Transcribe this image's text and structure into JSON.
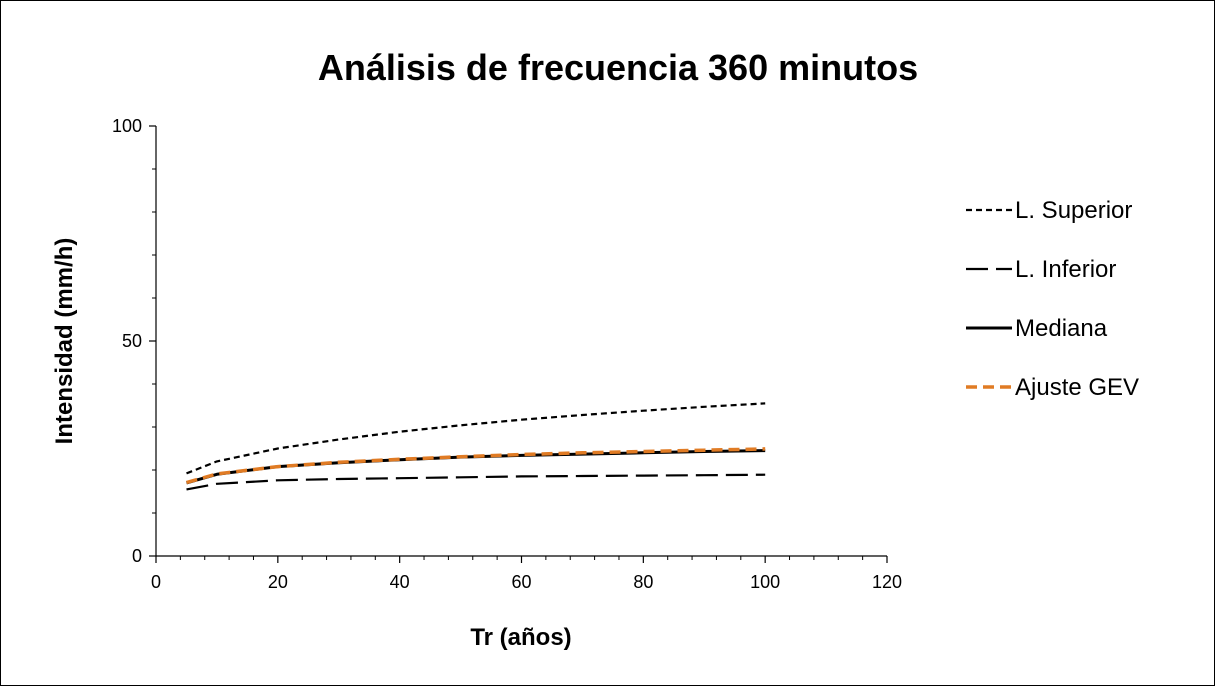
{
  "chart_data": {
    "type": "line",
    "title": "Análisis de frecuencia 360 minutos",
    "xlabel": "Tr (años)",
    "ylabel": "Intensidad (mm/h)",
    "xlim": [
      0,
      120
    ],
    "ylim": [
      0,
      100
    ],
    "x_ticks": [
      "0",
      "20",
      "40",
      "60",
      "80",
      "100",
      "120"
    ],
    "y_ticks": [
      "0",
      "50",
      "100"
    ],
    "grid": false,
    "legend_position": "right",
    "x": [
      5,
      10,
      20,
      30,
      40,
      50,
      60,
      70,
      80,
      90,
      100
    ],
    "series": [
      {
        "name": "L. Superior",
        "style": "short-dash",
        "color": "#000000",
        "values": [
          19.2,
          22.0,
          25.0,
          27.1,
          28.9,
          30.4,
          31.7,
          32.8,
          33.8,
          34.7,
          35.5
        ]
      },
      {
        "name": "L. Inferior",
        "style": "long-dash",
        "color": "#000000",
        "values": [
          15.5,
          16.8,
          17.6,
          17.9,
          18.1,
          18.3,
          18.5,
          18.6,
          18.7,
          18.8,
          18.9
        ]
      },
      {
        "name": "Mediana",
        "style": "solid",
        "color": "#000000",
        "values": [
          17.0,
          19.0,
          20.8,
          21.7,
          22.4,
          23.0,
          23.4,
          23.7,
          24.0,
          24.3,
          24.5
        ]
      },
      {
        "name": "Ajuste GEV",
        "style": "dash",
        "color": "#E07B24",
        "values": [
          17.1,
          19.1,
          20.8,
          21.8,
          22.5,
          23.1,
          23.6,
          24.0,
          24.3,
          24.6,
          24.9
        ]
      }
    ]
  }
}
